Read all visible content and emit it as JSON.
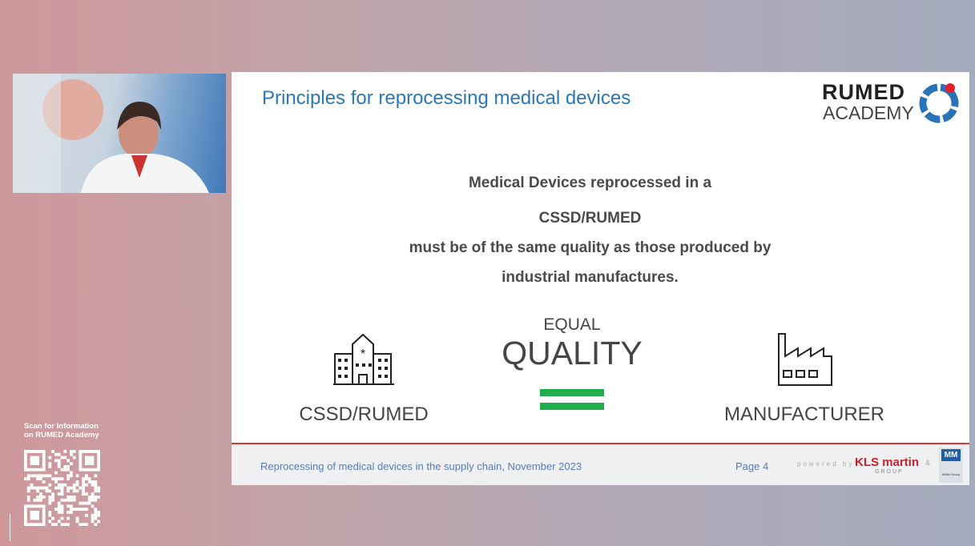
{
  "slide": {
    "title": "Principles for reprocessing medical devices",
    "logo": {
      "line1": "RUMED",
      "line2": "ACADEMY"
    },
    "statement": [
      "Medical Devices reprocessed in a",
      "CSSD/RUMED",
      "must be of the same quality as those produced by",
      "industrial manufactures."
    ],
    "equal_label": "EQUAL",
    "quality_label": "QUALITY",
    "left_label": "CSSD/RUMED",
    "right_label": "MANUFACTURER",
    "icons": {
      "left": "hospital-icon",
      "right": "factory-icon",
      "middle": "equals-icon"
    },
    "colors": {
      "title": "#2a78b5",
      "equals": "#1fae4b",
      "footer_line": "#d23a3a"
    },
    "footer": {
      "text": "Reprocessing of medical devices in the supply chain, November 2023",
      "page": "Page 4",
      "powered": "powered by",
      "kls": "KLS martin",
      "kls_sub": "GROUP",
      "amp": "&",
      "mm": "MM",
      "mm_sub": "MMM Group"
    }
  },
  "sidebar": {
    "qr_text": [
      "Scan for Information",
      "on RUMED Academy"
    ]
  }
}
